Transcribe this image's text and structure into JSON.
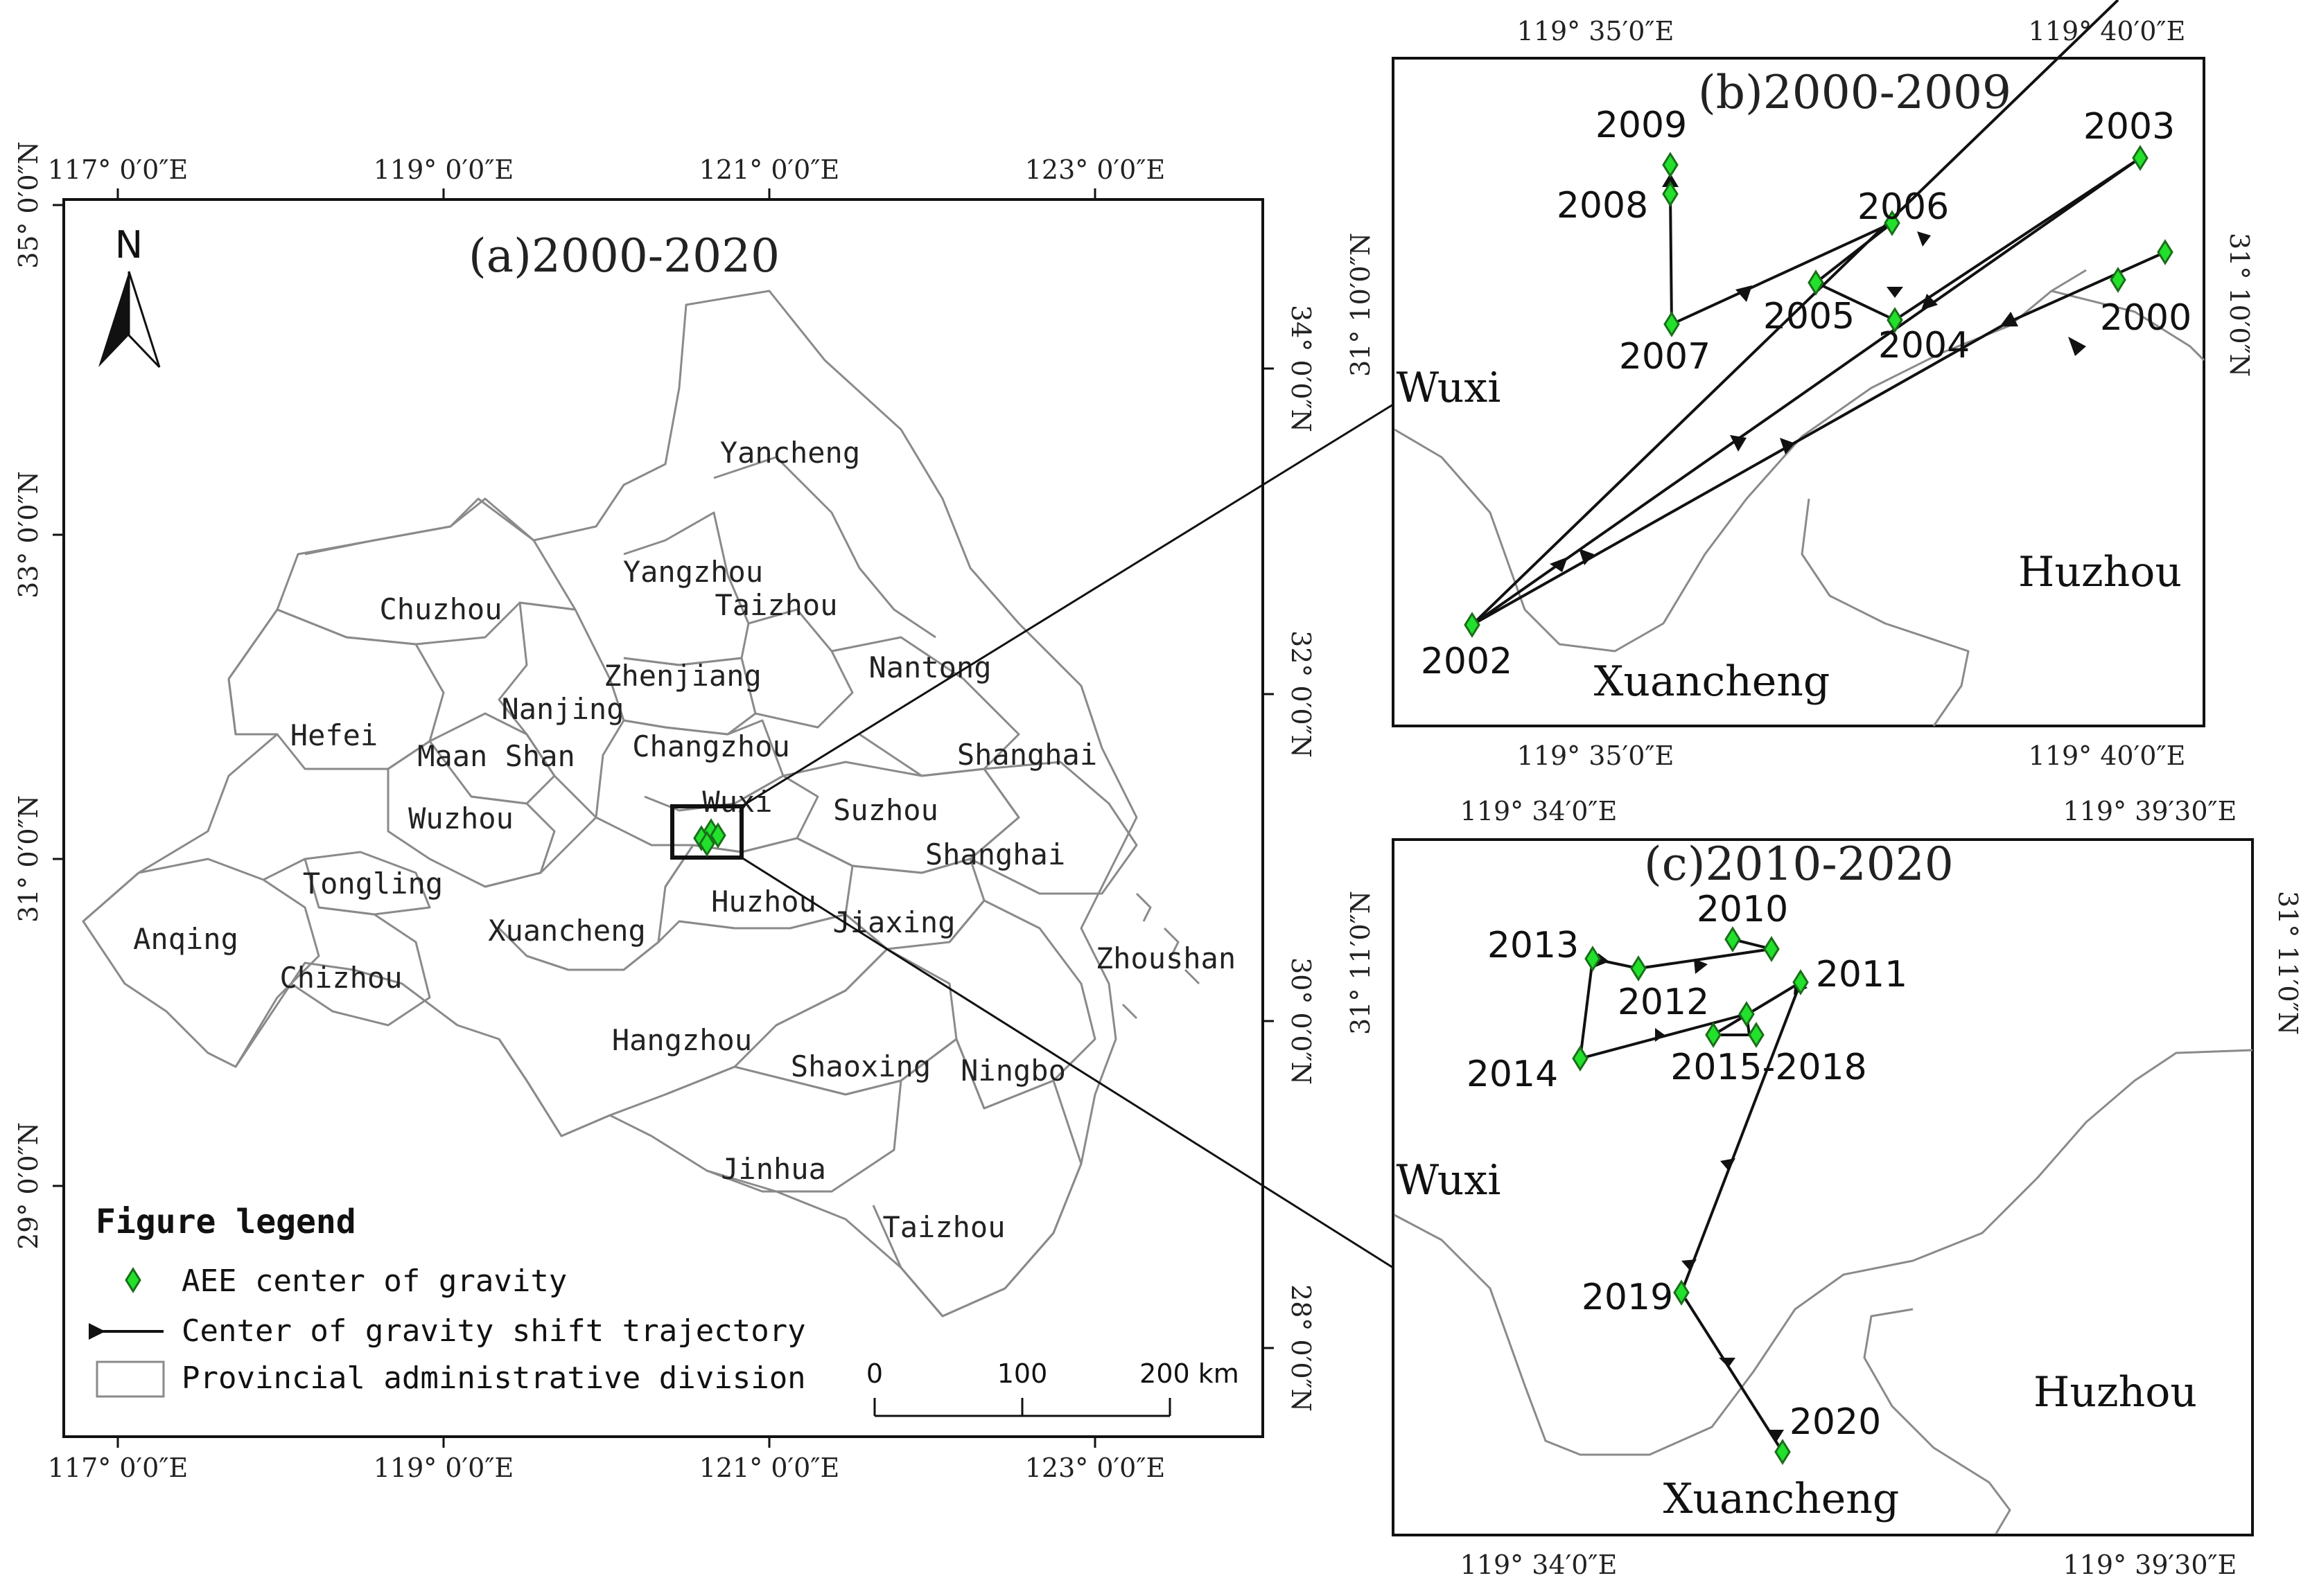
{
  "colors": {
    "marker_fill": "#22e02c",
    "marker_stroke": "#1a6e1a",
    "border": "#8a8a8a",
    "frame": "#111111"
  },
  "main_map": {
    "title": "(a)2000-2020",
    "north_label": "N",
    "lon_ticks": [
      "117° 0′0″E",
      "119° 0′0″E",
      "121° 0′0″E",
      "123° 0′0″E"
    ],
    "lat_ticks_left": [
      "35° 0′0″N",
      "33° 0′0″N",
      "31° 0′0″N",
      "29° 0′0″N"
    ],
    "lat_ticks_right": [
      "34° 0′0″N",
      "32° 0′0″N",
      "30° 0′0″N",
      "28° 0′0″N"
    ],
    "cities": [
      "Yancheng",
      "Yangzhou",
      "Taizhou",
      "Chuzhou",
      "Nantong",
      "Zhenjiang",
      "Nanjing",
      "Hefei",
      "Changzhou",
      "Maan Shan",
      "Shanghai",
      "Wuxi",
      "Wuzhou",
      "Suzhou",
      "Shanghai",
      "Tongling",
      "Huzhou",
      "Jiaxing",
      "Anqing",
      "Xuancheng",
      "Chizhou",
      "Zhoushan",
      "Hangzhou",
      "Shaoxing",
      "Ningbo",
      "Jinhua",
      "Taizhou"
    ],
    "legend": {
      "title": "Figure legend",
      "items": [
        "AEE center of gravity",
        "Center of gravity shift trajectory",
        "Provincial administrative division"
      ]
    },
    "scale_bar": {
      "labels": [
        "0",
        "100",
        "200 km"
      ]
    }
  },
  "inset_b": {
    "title": "(b)2000-2009",
    "lon_ticks": [
      "119° 35′0″E",
      "119° 40′0″E"
    ],
    "lat_ticks": [
      "31° 10′0″N"
    ],
    "regions": [
      "Wuxi",
      "Huzhou",
      "Xuancheng"
    ],
    "years": [
      "2009",
      "2008",
      "2007",
      "2006",
      "2005",
      "2004",
      "2003",
      "2002",
      "2000"
    ]
  },
  "inset_c": {
    "title": "(c)2010-2020",
    "lon_ticks": [
      "119° 34′0″E",
      "119° 39′30″E"
    ],
    "lat_ticks": [
      "31° 11′0″N"
    ],
    "regions": [
      "Wuxi",
      "Huzhou",
      "Xuancheng"
    ],
    "years": [
      "2010",
      "2011",
      "2012",
      "2013",
      "2014",
      "2015-2018",
      "2019",
      "2020"
    ]
  }
}
